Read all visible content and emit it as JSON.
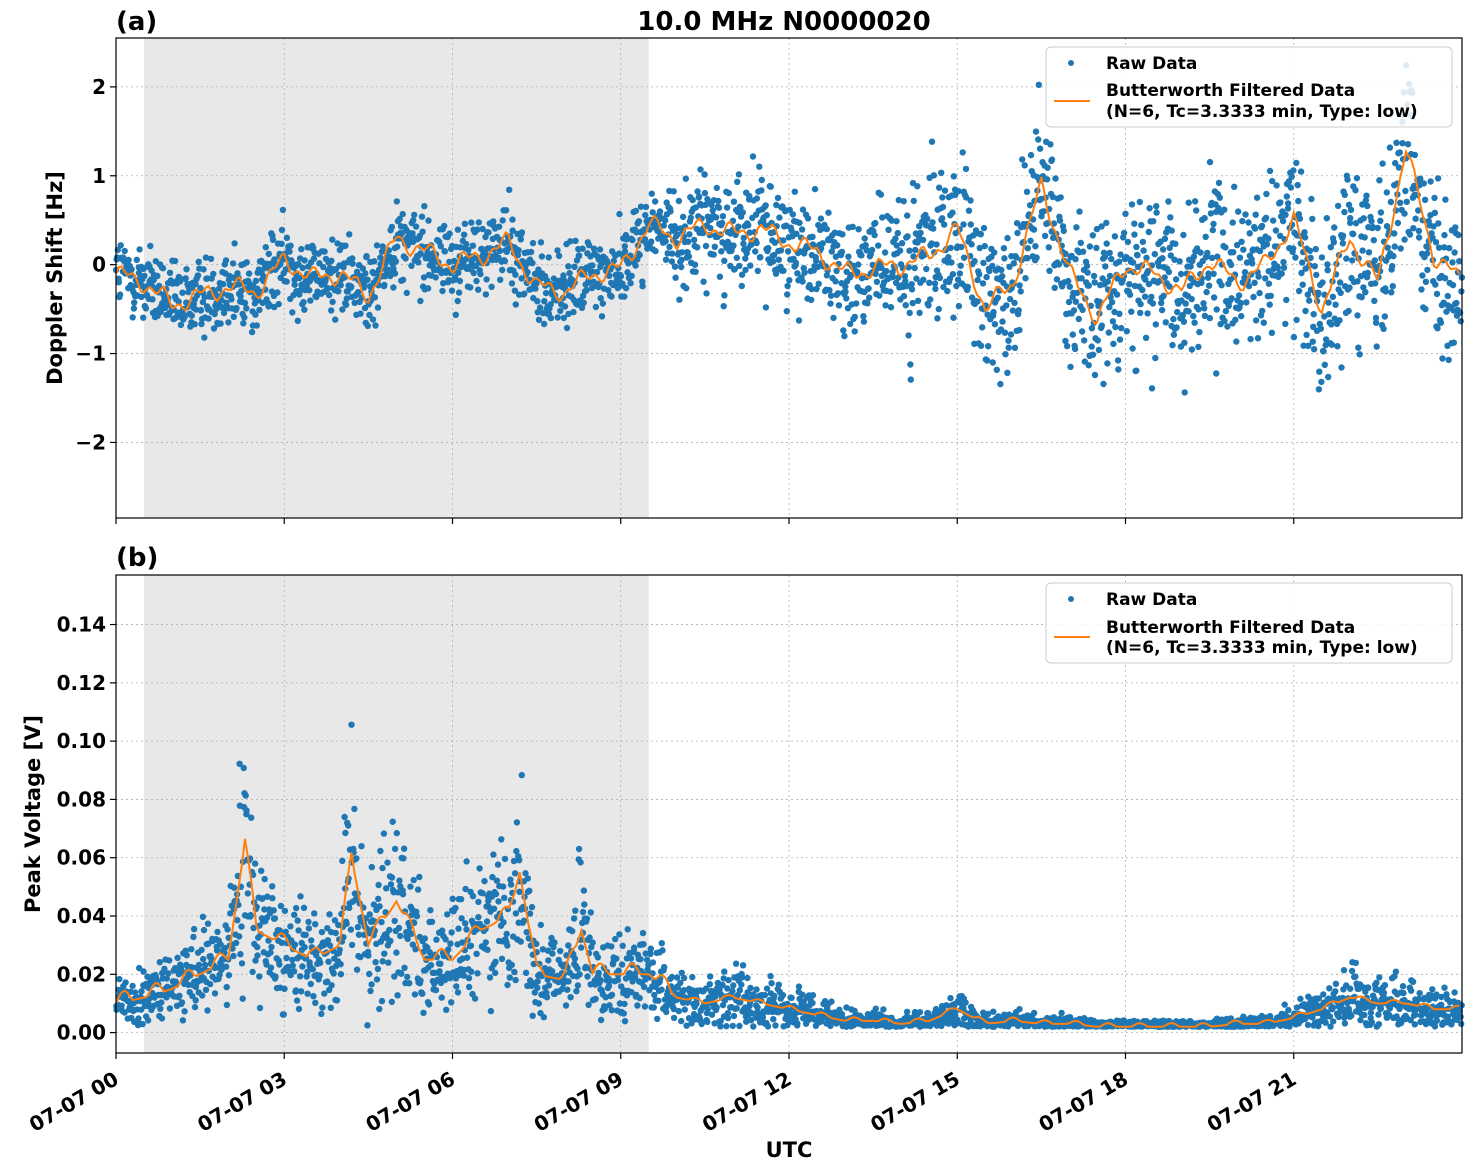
{
  "title": "10.0 MHz N0000020",
  "colors": {
    "raw": "#1f77b4",
    "filtered": "#ff7f0e",
    "shade": "#e8e8e8",
    "grid": "#b0b0b0"
  },
  "legend": {
    "raw_label": "Raw Data",
    "filt_line1": "Butterworth Filtered Data",
    "filt_line2": "(N=6, Tc=3.3333 min, Type: low)"
  },
  "xaxis": {
    "label": "UTC",
    "range_hours": [
      0,
      24
    ],
    "ticks": [
      {
        "hour": 0,
        "label": "07-07 00"
      },
      {
        "hour": 3,
        "label": "07-07 03"
      },
      {
        "hour": 6,
        "label": "07-07 06"
      },
      {
        "hour": 9,
        "label": "07-07 09"
      },
      {
        "hour": 12,
        "label": "07-07 12"
      },
      {
        "hour": 15,
        "label": "07-07 15"
      },
      {
        "hour": 18,
        "label": "07-07 18"
      },
      {
        "hour": 21,
        "label": "07-07 21"
      }
    ]
  },
  "shaded_interval_hours": [
    0.5,
    9.5
  ],
  "chart_data": [
    {
      "panel": "(a)",
      "type": "scatter",
      "ylabel": "Doppler Shift [Hz]",
      "ylim": [
        -2.85,
        2.55
      ],
      "yticks": [
        {
          "v": 2,
          "label": "2"
        },
        {
          "v": 1,
          "label": "1"
        },
        {
          "v": 0,
          "label": "0"
        },
        {
          "v": -1,
          "label": "−1"
        },
        {
          "v": -2,
          "label": "−2"
        }
      ],
      "grid": true,
      "legend_position": "top-right",
      "series": [
        {
          "name": "Raw Data",
          "style": "points",
          "description_only": true
        },
        {
          "name": "Butterworth Filtered Data",
          "style": "line",
          "x_hours": [
            0,
            0.5,
            1,
            1.5,
            2,
            2.5,
            3,
            3.5,
            4,
            4.5,
            5,
            5.5,
            6,
            6.5,
            7,
            7.5,
            8,
            8.5,
            9,
            9.5,
            10,
            10.5,
            11,
            11.5,
            12,
            12.5,
            13,
            13.5,
            14,
            14.5,
            15,
            15.5,
            16,
            16.5,
            17,
            17.5,
            18,
            18.5,
            19,
            19.5,
            20,
            20.5,
            21,
            21.5,
            22,
            22.5,
            23,
            23.5,
            24
          ],
          "y": [
            -0.1,
            -0.2,
            -0.45,
            -0.35,
            -0.25,
            -0.3,
            0.05,
            -0.15,
            -0.1,
            -0.35,
            0.3,
            0.15,
            0.0,
            0.1,
            0.25,
            -0.25,
            -0.3,
            -0.1,
            -0.05,
            0.45,
            0.3,
            0.45,
            0.35,
            0.4,
            0.25,
            0.15,
            -0.1,
            -0.05,
            0.0,
            0.1,
            0.4,
            -0.5,
            -0.2,
            0.9,
            -0.1,
            -0.6,
            0.0,
            -0.1,
            -0.3,
            0.05,
            -0.2,
            0.0,
            0.5,
            -0.5,
            0.3,
            -0.2,
            1.3,
            0.1,
            -0.2
          ]
        }
      ]
    },
    {
      "panel": "(b)",
      "type": "scatter",
      "ylabel": "Peak Voltage [V]",
      "ylim": [
        -0.007,
        0.157
      ],
      "yticks": [
        {
          "v": 0.14,
          "label": "0.14"
        },
        {
          "v": 0.12,
          "label": "0.12"
        },
        {
          "v": 0.1,
          "label": "0.10"
        },
        {
          "v": 0.08,
          "label": "0.08"
        },
        {
          "v": 0.06,
          "label": "0.06"
        },
        {
          "v": 0.04,
          "label": "0.04"
        },
        {
          "v": 0.02,
          "label": "0.02"
        },
        {
          "v": 0.0,
          "label": "0.00"
        }
      ],
      "grid": true,
      "legend_position": "top-right",
      "series": [
        {
          "name": "Raw Data",
          "style": "points",
          "description_only": true
        },
        {
          "name": "Butterworth Filtered Data",
          "style": "line",
          "x_hours": [
            0,
            0.5,
            1,
            1.5,
            2,
            2.3,
            2.5,
            3,
            3.5,
            4,
            4.2,
            4.5,
            5,
            5.5,
            6,
            6.5,
            7,
            7.2,
            7.5,
            8,
            8.3,
            8.5,
            9,
            9.5,
            10,
            10.5,
            11,
            11.5,
            12,
            12.5,
            13,
            13.5,
            14,
            14.5,
            15,
            15.5,
            16,
            16.5,
            17,
            17.5,
            18,
            18.5,
            19,
            19.5,
            20,
            20.5,
            21,
            21.5,
            22,
            22.5,
            23,
            23.5,
            24
          ],
          "y": [
            0.01,
            0.012,
            0.015,
            0.02,
            0.025,
            0.065,
            0.035,
            0.03,
            0.025,
            0.03,
            0.06,
            0.03,
            0.045,
            0.025,
            0.025,
            0.035,
            0.04,
            0.055,
            0.02,
            0.018,
            0.035,
            0.02,
            0.02,
            0.02,
            0.012,
            0.01,
            0.012,
            0.01,
            0.008,
            0.006,
            0.004,
            0.004,
            0.003,
            0.004,
            0.008,
            0.003,
            0.004,
            0.003,
            0.003,
            0.002,
            0.002,
            0.002,
            0.002,
            0.002,
            0.003,
            0.003,
            0.005,
            0.008,
            0.012,
            0.01,
            0.01,
            0.008,
            0.008
          ]
        }
      ]
    }
  ]
}
